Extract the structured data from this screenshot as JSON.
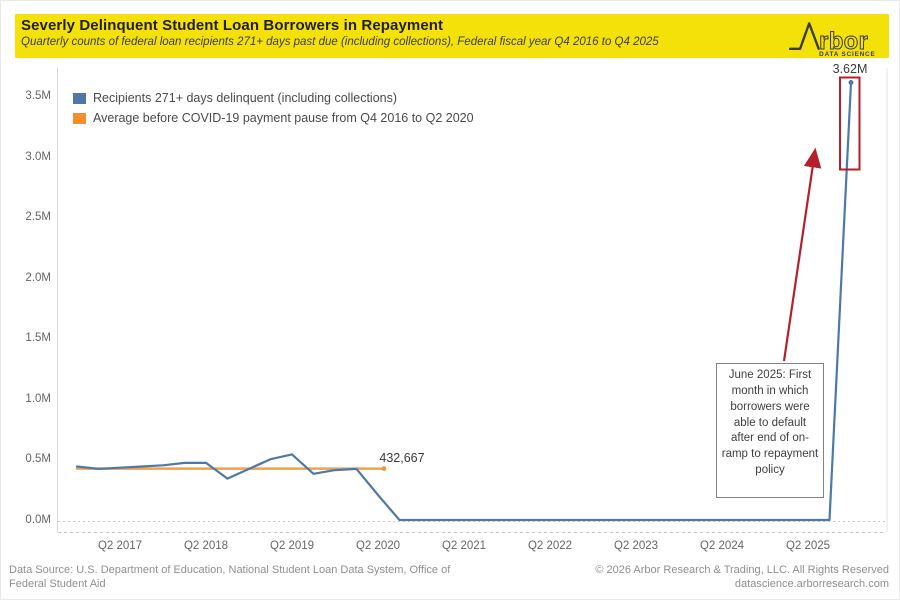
{
  "header": {
    "title": "Severly Delinquent Student Loan Borrowers in Repayment",
    "subtitle": "Quarterly counts of federal loan recipients 271+ days past due (including collections), Federal fiscal year Q4 2016 to Q4 2025",
    "background_color": "#F5E10A",
    "logo": {
      "brand": "rbor",
      "tagline": "DATA SCIENCE"
    }
  },
  "legend": [
    {
      "label": "Recipients 271+ days delinquent (including collections)",
      "color": "#4e79a7"
    },
    {
      "label": "Average before COVID-19 payment pause from Q4 2016 to Q2 2020",
      "color": "#f28e2b"
    }
  ],
  "chart_data": {
    "type": "line",
    "title": "Severly Delinquent Student Loan Borrowers in Repayment",
    "x": [
      "Q4 2016",
      "Q1 2017",
      "Q2 2017",
      "Q3 2017",
      "Q4 2017",
      "Q1 2018",
      "Q2 2018",
      "Q3 2018",
      "Q4 2018",
      "Q1 2019",
      "Q2 2019",
      "Q3 2019",
      "Q4 2019",
      "Q1 2020",
      "Q2 2020",
      "Q3 2020",
      "Q4 2020",
      "Q1 2021",
      "Q2 2021",
      "Q3 2021",
      "Q4 2021",
      "Q1 2022",
      "Q2 2022",
      "Q3 2022",
      "Q4 2022",
      "Q1 2023",
      "Q2 2023",
      "Q3 2023",
      "Q4 2023",
      "Q1 2024",
      "Q2 2024",
      "Q3 2024",
      "Q4 2024",
      "Q1 2025",
      "Q2 2025",
      "Q3 2025",
      "Q4 2025"
    ],
    "series": [
      {
        "name": "Recipients 271+ days delinquent (including collections)",
        "color": "#4e79a7",
        "values_millions": [
          0.45,
          0.43,
          0.44,
          0.45,
          0.46,
          0.48,
          0.48,
          0.35,
          0.43,
          0.51,
          0.55,
          0.39,
          0.42,
          0.43,
          0.215,
          0.008,
          0.008,
          0.008,
          0.008,
          0.008,
          0.008,
          0.008,
          0.008,
          0.008,
          0.008,
          0.008,
          0.008,
          0.008,
          0.008,
          0.008,
          0.008,
          0.008,
          0.008,
          0.008,
          0.008,
          0.008,
          3.62
        ]
      },
      {
        "name": "Average before COVID-19 payment pause from Q4 2016 to Q2 2020",
        "color": "#f0a04e",
        "value_millions": 0.432667,
        "span": [
          "Q4 2016",
          "Q2 2020"
        ]
      }
    ],
    "y_ticks": [
      "0.0M",
      "0.5M",
      "1.0M",
      "1.5M",
      "2.0M",
      "2.5M",
      "3.0M",
      "3.5M"
    ],
    "x_ticks": [
      "Q2 2017",
      "Q2 2018",
      "Q2 2019",
      "Q2 2020",
      "Q2 2021",
      "Q2 2022",
      "Q2 2023",
      "Q2 2024",
      "Q2 2025"
    ],
    "ylim_millions": [
      0,
      3.75
    ],
    "grid": "zero line only (dotted)",
    "legend_position": "top-left",
    "annotations": {
      "average_value_label": "432,667",
      "peak_value_label": "3.62M",
      "peak_point": {
        "x": "Q4 2025",
        "value_millions": 3.62
      },
      "callout_text": "June 2025: First month in which borrowers were able to default after end of on-ramp to repayment policy",
      "highlight_color": "#b51f29"
    }
  },
  "footer": {
    "source_line1": "Data Source: U.S. Department of Education, National Student Loan Data System, Office of",
    "source_line2": "Federal Student Aid",
    "copyright": "© 2026 Arbor Research & Trading, LLC. All Rights Reserved",
    "website": "datascience.arborresearch.com"
  }
}
